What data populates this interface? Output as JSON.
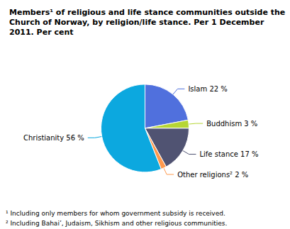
{
  "chart_data": {
    "type": "pie",
    "title": "Members¹ of religious and life stance communities outside the\nChurch of Norway, by religion/life stance. Per 1 December\n2011. Per cent",
    "categories": [
      "Islam 22 %",
      "Buddhism 3 %",
      "Life stance 17 %",
      "Other religions² 2 %",
      "Christianity 56 %"
    ],
    "values": [
      22,
      3,
      17,
      2,
      56
    ],
    "annotations": [
      "¹ Including only members for whom government subsidy is received.",
      "² Including Bahai’, Judaism, Sikhism and other religious communities."
    ]
  }
}
